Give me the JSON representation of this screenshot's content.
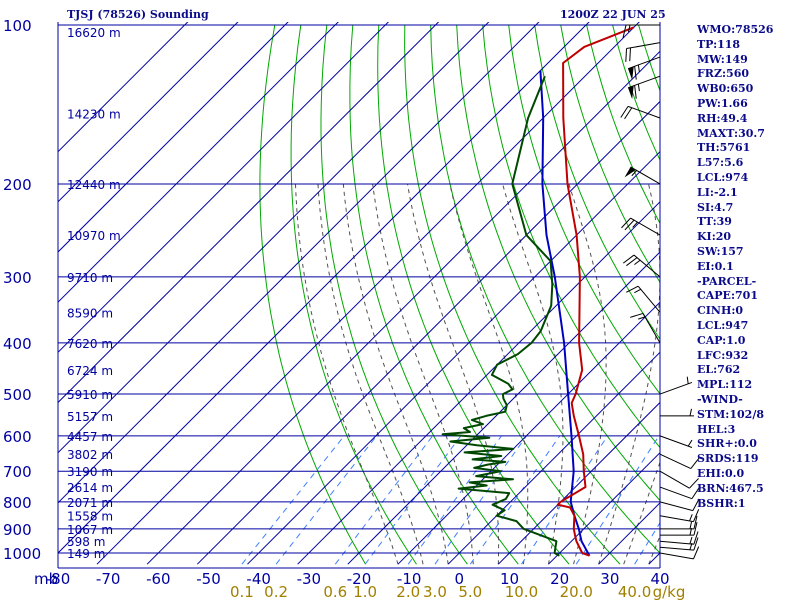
{
  "header": {
    "station": "TJSJ (78526) Sounding",
    "time": "1200Z 22 JUN 25"
  },
  "indices": [
    "WMO:78526",
    "TP:118",
    "MW:149",
    "FRZ:560",
    "WB0:650",
    "PW:1.66",
    "RH:49.4",
    "MAXT:30.7",
    "TH:5761",
    "L57:5.6",
    "LCL:974",
    "LI:-2.1",
    "SI:4.7",
    "TT:39",
    "KI:20",
    "SW:157",
    "EI:0.1",
    "-PARCEL-",
    "CAPE:701",
    "CINH:0",
    "LCL:947",
    "CAP:1.0",
    "LFC:932",
    "EL:762",
    "MPL:112",
    "-WIND-",
    "STM:102/8",
    "HEL:3",
    "SHR+:0.0",
    "SRDS:119",
    "EHI:0.0",
    "BRN:467.5",
    "BSHR:1"
  ],
  "colors": {
    "grid": "#0000a0",
    "temperature": "#c00000",
    "dewpoint": "#004800",
    "parcel": "#0000c0",
    "dry_adiabat": "#00a800",
    "moist_adiabat": "#505050",
    "mixing_ratio": "#4080ff",
    "axis_label": "#0000a0",
    "mixing_label": "#a08000"
  },
  "chart_data": {
    "type": "skew-t log-p sounding",
    "pressure_unit_label": "mb",
    "pressure_levels": [
      100,
      200,
      300,
      400,
      500,
      600,
      700,
      800,
      900,
      1000
    ],
    "pressure_tick_labels": [
      "100",
      "200",
      "300",
      "400",
      "500",
      "600",
      "700",
      "800",
      "900",
      "1000"
    ],
    "temperature_ticks": [
      -80,
      -70,
      -60,
      -50,
      -40,
      -30,
      -20,
      -10,
      0,
      10,
      20,
      30,
      40
    ],
    "temperature_tick_labels": [
      "-80",
      "-70",
      "-60",
      "-50",
      "-40",
      "-30",
      "-20",
      "-10",
      "0",
      "10",
      "20",
      "30",
      "40"
    ],
    "height_labels": [
      {
        "p": 103,
        "label": "16620 m"
      },
      {
        "p": 147,
        "label": "14230 m"
      },
      {
        "p": 200,
        "label": "12440 m"
      },
      {
        "p": 250,
        "label": "10970 m"
      },
      {
        "p": 300,
        "label": "9710 m"
      },
      {
        "p": 350,
        "label": "8590 m"
      },
      {
        "p": 400,
        "label": "7620 m"
      },
      {
        "p": 450,
        "label": "6724 m"
      },
      {
        "p": 500,
        "label": "5910 m"
      },
      {
        "p": 550,
        "label": "5157 m"
      },
      {
        "p": 600,
        "label": "4457 m"
      },
      {
        "p": 650,
        "label": "3802 m"
      },
      {
        "p": 700,
        "label": "3190 m"
      },
      {
        "p": 750,
        "label": "2614 m"
      },
      {
        "p": 800,
        "label": "2071 m"
      },
      {
        "p": 850,
        "label": "1558 m"
      },
      {
        "p": 900,
        "label": "1067 m"
      },
      {
        "p": 950,
        "label": "598 m"
      },
      {
        "p": 1000,
        "label": "149 m"
      }
    ],
    "mixing_ratio_labels": [
      {
        "w": 0.1,
        "label": "0.1"
      },
      {
        "w": 0.2,
        "label": "0.2"
      },
      {
        "w": 0.6,
        "label": "0.6"
      },
      {
        "w": 1.0,
        "label": "1.0"
      },
      {
        "w": 2.0,
        "label": "2.0"
      },
      {
        "w": 3.0,
        "label": "3.0"
      },
      {
        "w": 5.0,
        "label": "5.0"
      },
      {
        "w": 10.0,
        "label": "10.0"
      },
      {
        "w": 20.0,
        "label": "20.0"
      },
      {
        "w": 40.0,
        "label": "40.0"
      }
    ],
    "mixing_ratio_unit": "g/kg",
    "temperature_profile": [
      [
        1012,
        26.5
      ],
      [
        1000,
        24.5
      ],
      [
        950,
        21.0
      ],
      [
        925,
        19.5
      ],
      [
        900,
        18.0
      ],
      [
        850,
        15.5
      ],
      [
        820,
        13.0
      ],
      [
        810,
        10.0
      ],
      [
        800,
        10.0
      ],
      [
        750,
        12.0
      ],
      [
        700,
        8.5
      ],
      [
        650,
        5.0
      ],
      [
        600,
        0.5
      ],
      [
        550,
        -4.5
      ],
      [
        520,
        -7.5
      ],
      [
        500,
        -8.5
      ],
      [
        450,
        -12.0
      ],
      [
        400,
        -18.0
      ],
      [
        300,
        -31.0
      ],
      [
        250,
        -40.0
      ],
      [
        200,
        -52.0
      ],
      [
        150,
        -66.0
      ],
      [
        118,
        -77.0
      ],
      [
        110,
        -76.0
      ],
      [
        101,
        -70.0
      ]
    ],
    "dewpoint_profile": [
      [
        1012,
        20.5
      ],
      [
        1000,
        19.0
      ],
      [
        950,
        17.0
      ],
      [
        900,
        8.0
      ],
      [
        870,
        5.0
      ],
      [
        850,
        0.0
      ],
      [
        830,
        0.5
      ],
      [
        810,
        -3.0
      ],
      [
        790,
        -1.5
      ],
      [
        770,
        -2.0
      ],
      [
        755,
        -13.0
      ],
      [
        745,
        -8.0
      ],
      [
        735,
        -12.0
      ],
      [
        725,
        -4.0
      ],
      [
        715,
        -12.0
      ],
      [
        700,
        -8.0
      ],
      [
        690,
        -14.0
      ],
      [
        680,
        -12.0
      ],
      [
        672,
        -9.0
      ],
      [
        665,
        -16.0
      ],
      [
        655,
        -11.0
      ],
      [
        645,
        -19.0
      ],
      [
        635,
        -10.0
      ],
      [
        625,
        -18.0
      ],
      [
        615,
        -24.0
      ],
      [
        605,
        -17.0
      ],
      [
        596,
        -27.0
      ],
      [
        590,
        -22.0
      ],
      [
        580,
        -24.0
      ],
      [
        570,
        -21.0
      ],
      [
        560,
        -24.0
      ],
      [
        550,
        -22.0
      ],
      [
        540,
        -19.0
      ],
      [
        525,
        -20.0
      ],
      [
        510,
        -22.0
      ],
      [
        500,
        -23.0
      ],
      [
        490,
        -22.0
      ],
      [
        478,
        -24.0
      ],
      [
        460,
        -29.0
      ],
      [
        440,
        -30.0
      ],
      [
        420,
        -28.0
      ],
      [
        400,
        -27.5
      ],
      [
        380,
        -28.0
      ],
      [
        340,
        -31.0
      ],
      [
        310,
        -35.0
      ],
      [
        280,
        -40.0
      ],
      [
        250,
        -50.0
      ],
      [
        200,
        -63.0
      ],
      [
        150,
        -73.0
      ],
      [
        125,
        -78.0
      ]
    ],
    "parcel_profile": [
      [
        1012,
        26.5
      ],
      [
        950,
        22.0
      ],
      [
        900,
        19.0
      ],
      [
        850,
        15.5
      ],
      [
        800,
        12.0
      ],
      [
        700,
        6.5
      ],
      [
        600,
        -1.0
      ],
      [
        500,
        -10.0
      ],
      [
        400,
        -21.0
      ],
      [
        300,
        -36.0
      ],
      [
        250,
        -46.0
      ],
      [
        200,
        -57.0
      ],
      [
        150,
        -70.0
      ],
      [
        122,
        -80.0
      ]
    ],
    "wind_barbs": [
      {
        "p": 1000,
        "dir": 100,
        "spd": 10
      },
      {
        "p": 975,
        "dir": 95,
        "spd": 15
      },
      {
        "p": 950,
        "dir": 95,
        "spd": 15
      },
      {
        "p": 925,
        "dir": 90,
        "spd": 15
      },
      {
        "p": 900,
        "dir": 90,
        "spd": 15
      },
      {
        "p": 850,
        "dir": 100,
        "spd": 15
      },
      {
        "p": 800,
        "dir": 105,
        "spd": 10
      },
      {
        "p": 750,
        "dir": 110,
        "spd": 10
      },
      {
        "p": 700,
        "dir": 120,
        "spd": 10
      },
      {
        "p": 650,
        "dir": 115,
        "spd": 10
      },
      {
        "p": 600,
        "dir": 110,
        "spd": 5
      },
      {
        "p": 550,
        "dir": 90,
        "spd": 5
      },
      {
        "p": 500,
        "dir": 70,
        "spd": 5
      },
      {
        "p": 400,
        "dir": 330,
        "spd": 15
      },
      {
        "p": 350,
        "dir": 320,
        "spd": 15
      },
      {
        "p": 300,
        "dir": 310,
        "spd": 25
      },
      {
        "p": 250,
        "dir": 300,
        "spd": 25
      },
      {
        "p": 200,
        "dir": 300,
        "spd": 55
      },
      {
        "p": 150,
        "dir": 290,
        "spd": 20
      },
      {
        "p": 125,
        "dir": 250,
        "spd": 65
      },
      {
        "p": 115,
        "dir": 250,
        "spd": 65
      },
      {
        "p": 108,
        "dir": 260,
        "spd": 20
      },
      {
        "p": 100,
        "dir": 270,
        "spd": 15
      }
    ],
    "grid": true
  }
}
